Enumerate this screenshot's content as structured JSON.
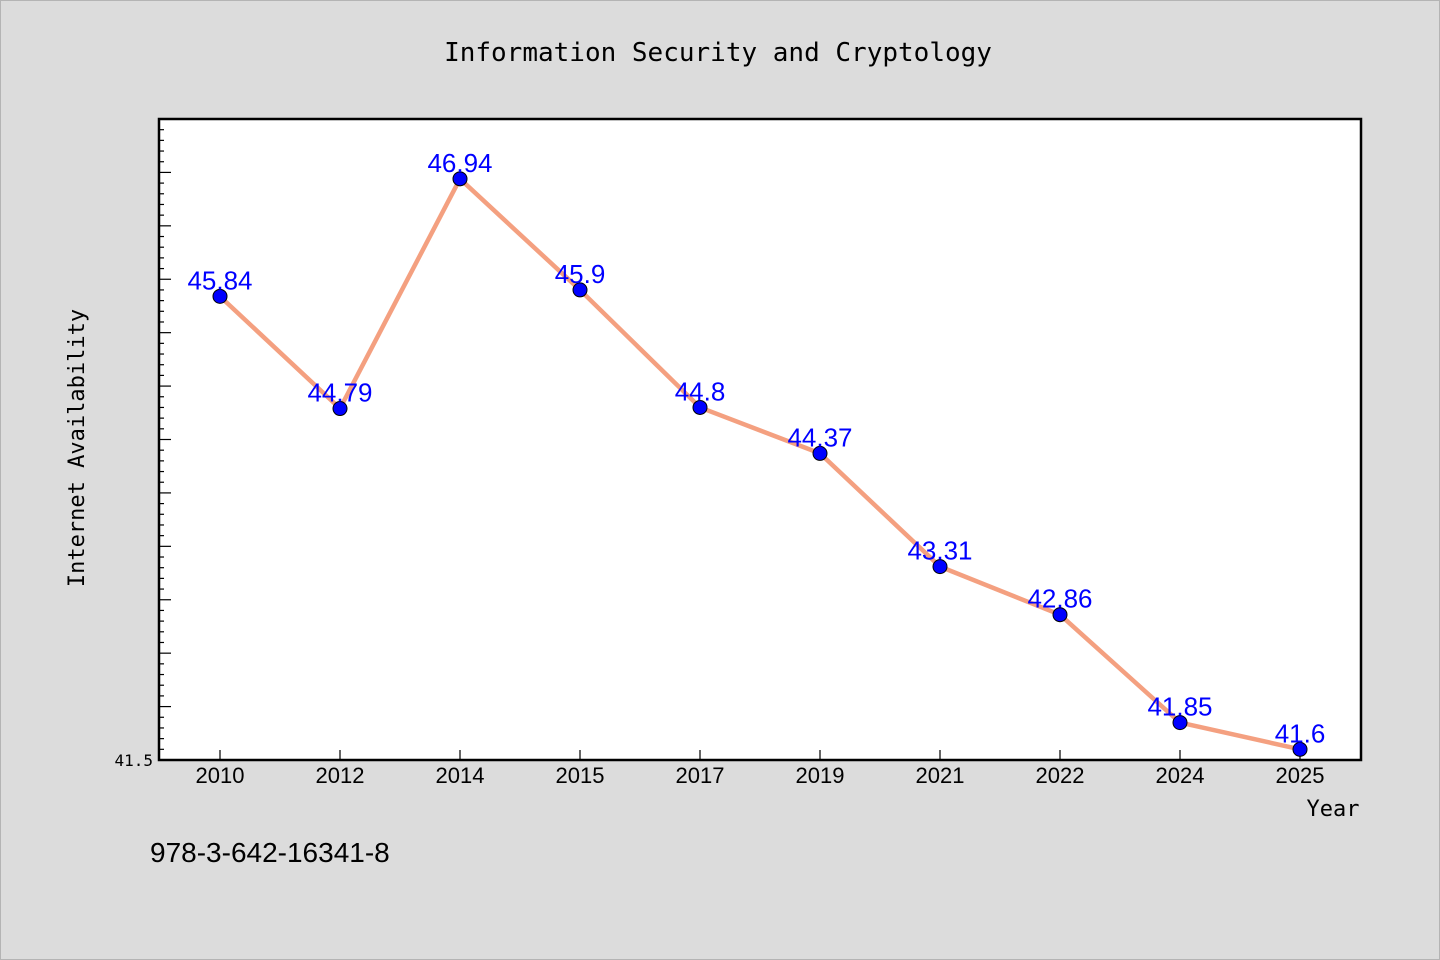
{
  "chart_data": {
    "type": "line",
    "title": "Information Security and Cryptology",
    "xlabel": "Year",
    "ylabel": "Internet Availability",
    "categories": [
      "2010",
      "2012",
      "2014",
      "2015",
      "2017",
      "2019",
      "2021",
      "2022",
      "2024",
      "2025"
    ],
    "series": [
      {
        "values": [
          45.84,
          44.79,
          46.94,
          45.9,
          44.8,
          44.37,
          43.31,
          42.86,
          41.85,
          41.6
        ],
        "data_labels": [
          "45.84",
          "44.79",
          "46.94",
          "45.9",
          "44.8",
          "44.37",
          "43.31",
          "42.86",
          "41.85",
          "41.6"
        ]
      }
    ],
    "ylim": [
      41.5,
      47.5
    ],
    "y_tick_labels": [
      "41.5"
    ],
    "grid": false,
    "legend": "none",
    "colors": {
      "line": "#f4a080",
      "marker": "#0000ff",
      "data_label": "#0000ff",
      "background": "#dcdcdc",
      "plot_background": "#ffffff"
    }
  },
  "footnote": "978-3-642-16341-8"
}
